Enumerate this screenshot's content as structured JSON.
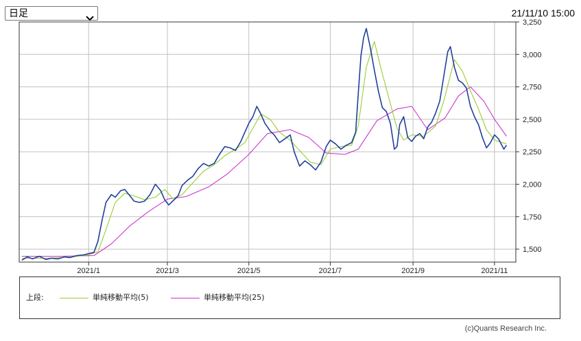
{
  "controls": {
    "period_selected": "日足",
    "timestamp": "21/11/10 15:00"
  },
  "legend": {
    "prefix": "上段:",
    "items": [
      {
        "label": "単純移動平均(5)",
        "color": "#99cc33"
      },
      {
        "label": "単純移動平均(25)",
        "color": "#cc33cc"
      }
    ]
  },
  "copyright": "(c)Quants Research Inc.",
  "colors": {
    "price": "#1f3f99",
    "sma5": "#99cc33",
    "sma25": "#cc33cc",
    "grid": "#c0c0c0",
    "frame": "#333333"
  },
  "chart_data": {
    "type": "line",
    "ylim": [
      1400,
      3250
    ],
    "grid": true,
    "y_ticks": [
      1500,
      1750,
      2000,
      2250,
      2500,
      2750,
      3000,
      3250
    ],
    "y_tick_labels": [
      "1,500",
      "1,750",
      "2,000",
      "2,250",
      "2,500",
      "2,750",
      "3,000",
      "3,250"
    ],
    "x_ticks": [
      {
        "x": "2021-01-01",
        "label": "2021/1"
      },
      {
        "x": "2021-03-01",
        "label": "2021/3"
      },
      {
        "x": "2021-05-01",
        "label": "2021/5"
      },
      {
        "x": "2021-07-01",
        "label": "2021/7"
      },
      {
        "x": "2021-09-01",
        "label": "2021/9"
      },
      {
        "x": "2021-11-01",
        "label": "2021/11"
      }
    ],
    "x_range": [
      "2020-11-10",
      "2021-11-17"
    ],
    "series": [
      {
        "name": "",
        "key": "price",
        "points": [
          [
            "2020-11-12",
            1415
          ],
          [
            "2020-11-16",
            1440
          ],
          [
            "2020-11-20",
            1425
          ],
          [
            "2020-11-25",
            1445
          ],
          [
            "2020-11-30",
            1420
          ],
          [
            "2020-12-04",
            1430
          ],
          [
            "2020-12-09",
            1425
          ],
          [
            "2020-12-14",
            1440
          ],
          [
            "2020-12-18",
            1435
          ],
          [
            "2020-12-23",
            1450
          ],
          [
            "2020-12-28",
            1455
          ],
          [
            "2021-01-01",
            1465
          ],
          [
            "2021-01-05",
            1475
          ],
          [
            "2021-01-08",
            1560
          ],
          [
            "2021-01-11",
            1720
          ],
          [
            "2021-01-14",
            1860
          ],
          [
            "2021-01-18",
            1920
          ],
          [
            "2021-01-21",
            1900
          ],
          [
            "2021-01-25",
            1950
          ],
          [
            "2021-01-28",
            1960
          ],
          [
            "2021-02-01",
            1910
          ],
          [
            "2021-02-04",
            1870
          ],
          [
            "2021-02-08",
            1860
          ],
          [
            "2021-02-12",
            1870
          ],
          [
            "2021-02-16",
            1920
          ],
          [
            "2021-02-20",
            2000
          ],
          [
            "2021-02-24",
            1950
          ],
          [
            "2021-02-27",
            1880
          ],
          [
            "2021-03-02",
            1840
          ],
          [
            "2021-03-05",
            1870
          ],
          [
            "2021-03-09",
            1910
          ],
          [
            "2021-03-12",
            1990
          ],
          [
            "2021-03-16",
            2030
          ],
          [
            "2021-03-20",
            2060
          ],
          [
            "2021-03-24",
            2120
          ],
          [
            "2021-03-28",
            2160
          ],
          [
            "2021-04-01",
            2140
          ],
          [
            "2021-04-05",
            2160
          ],
          [
            "2021-04-09",
            2230
          ],
          [
            "2021-04-13",
            2290
          ],
          [
            "2021-04-17",
            2280
          ],
          [
            "2021-04-21",
            2260
          ],
          [
            "2021-04-25",
            2330
          ],
          [
            "2021-04-28",
            2400
          ],
          [
            "2021-05-01",
            2470
          ],
          [
            "2021-05-04",
            2520
          ],
          [
            "2021-05-07",
            2600
          ],
          [
            "2021-05-10",
            2540
          ],
          [
            "2021-05-13",
            2470
          ],
          [
            "2021-05-17",
            2410
          ],
          [
            "2021-05-20",
            2380
          ],
          [
            "2021-05-24",
            2320
          ],
          [
            "2021-05-28",
            2350
          ],
          [
            "2021-06-01",
            2380
          ],
          [
            "2021-06-04",
            2250
          ],
          [
            "2021-06-08",
            2140
          ],
          [
            "2021-06-12",
            2180
          ],
          [
            "2021-06-16",
            2150
          ],
          [
            "2021-06-20",
            2110
          ],
          [
            "2021-06-24",
            2170
          ],
          [
            "2021-06-28",
            2290
          ],
          [
            "2021-07-01",
            2340
          ],
          [
            "2021-07-05",
            2310
          ],
          [
            "2021-07-09",
            2270
          ],
          [
            "2021-07-13",
            2300
          ],
          [
            "2021-07-17",
            2320
          ],
          [
            "2021-07-20",
            2400
          ],
          [
            "2021-07-22",
            2700
          ],
          [
            "2021-07-24",
            2990
          ],
          [
            "2021-07-26",
            3130
          ],
          [
            "2021-07-28",
            3200
          ],
          [
            "2021-07-31",
            3050
          ],
          [
            "2021-08-03",
            2880
          ],
          [
            "2021-08-06",
            2720
          ],
          [
            "2021-08-09",
            2590
          ],
          [
            "2021-08-12",
            2560
          ],
          [
            "2021-08-15",
            2470
          ],
          [
            "2021-08-18",
            2270
          ],
          [
            "2021-08-20",
            2290
          ],
          [
            "2021-08-22",
            2460
          ],
          [
            "2021-08-25",
            2520
          ],
          [
            "2021-08-28",
            2360
          ],
          [
            "2021-08-31",
            2330
          ],
          [
            "2021-09-03",
            2370
          ],
          [
            "2021-09-06",
            2390
          ],
          [
            "2021-09-09",
            2350
          ],
          [
            "2021-09-12",
            2440
          ],
          [
            "2021-09-15",
            2480
          ],
          [
            "2021-09-18",
            2550
          ],
          [
            "2021-09-21",
            2640
          ],
          [
            "2021-09-24",
            2830
          ],
          [
            "2021-09-27",
            3020
          ],
          [
            "2021-09-29",
            3060
          ],
          [
            "2021-10-02",
            2900
          ],
          [
            "2021-10-05",
            2800
          ],
          [
            "2021-10-08",
            2780
          ],
          [
            "2021-10-11",
            2740
          ],
          [
            "2021-10-14",
            2600
          ],
          [
            "2021-10-17",
            2520
          ],
          [
            "2021-10-20",
            2460
          ],
          [
            "2021-10-23",
            2360
          ],
          [
            "2021-10-26",
            2280
          ],
          [
            "2021-10-29",
            2320
          ],
          [
            "2021-11-01",
            2380
          ],
          [
            "2021-11-04",
            2350
          ],
          [
            "2021-11-08",
            2270
          ],
          [
            "2021-11-10",
            2300
          ]
        ]
      },
      {
        "name": "単純移動平均(5)",
        "key": "sma5",
        "points": [
          [
            "2020-11-12",
            1430
          ],
          [
            "2020-12-01",
            1430
          ],
          [
            "2020-12-20",
            1440
          ],
          [
            "2021-01-01",
            1455
          ],
          [
            "2021-01-08",
            1480
          ],
          [
            "2021-01-14",
            1650
          ],
          [
            "2021-01-21",
            1860
          ],
          [
            "2021-01-28",
            1930
          ],
          [
            "2021-02-04",
            1910
          ],
          [
            "2021-02-12",
            1880
          ],
          [
            "2021-02-20",
            1900
          ],
          [
            "2021-02-27",
            1960
          ],
          [
            "2021-03-05",
            1890
          ],
          [
            "2021-03-12",
            1920
          ],
          [
            "2021-03-20",
            2010
          ],
          [
            "2021-03-28",
            2100
          ],
          [
            "2021-04-05",
            2150
          ],
          [
            "2021-04-13",
            2220
          ],
          [
            "2021-04-21",
            2270
          ],
          [
            "2021-04-28",
            2320
          ],
          [
            "2021-05-04",
            2430
          ],
          [
            "2021-05-10",
            2540
          ],
          [
            "2021-05-17",
            2500
          ],
          [
            "2021-05-24",
            2400
          ],
          [
            "2021-06-01",
            2340
          ],
          [
            "2021-06-08",
            2260
          ],
          [
            "2021-06-16",
            2170
          ],
          [
            "2021-06-24",
            2150
          ],
          [
            "2021-07-01",
            2270
          ],
          [
            "2021-07-09",
            2290
          ],
          [
            "2021-07-17",
            2300
          ],
          [
            "2021-07-22",
            2450
          ],
          [
            "2021-07-28",
            2900
          ],
          [
            "2021-08-03",
            3100
          ],
          [
            "2021-08-09",
            2850
          ],
          [
            "2021-08-15",
            2620
          ],
          [
            "2021-08-20",
            2430
          ],
          [
            "2021-08-25",
            2340
          ],
          [
            "2021-08-31",
            2380
          ],
          [
            "2021-09-09",
            2370
          ],
          [
            "2021-09-18",
            2450
          ],
          [
            "2021-09-24",
            2640
          ],
          [
            "2021-10-02",
            2960
          ],
          [
            "2021-10-08",
            2870
          ],
          [
            "2021-10-14",
            2720
          ],
          [
            "2021-10-20",
            2580
          ],
          [
            "2021-10-26",
            2420
          ],
          [
            "2021-11-01",
            2340
          ],
          [
            "2021-11-10",
            2310
          ]
        ]
      },
      {
        "name": "単純移動平均(25)",
        "key": "sma25",
        "points": [
          [
            "2020-11-12",
            1445
          ],
          [
            "2020-12-10",
            1445
          ],
          [
            "2021-01-05",
            1450
          ],
          [
            "2021-01-18",
            1540
          ],
          [
            "2021-02-01",
            1680
          ],
          [
            "2021-02-15",
            1790
          ],
          [
            "2021-03-01",
            1885
          ],
          [
            "2021-03-15",
            1905
          ],
          [
            "2021-04-01",
            1980
          ],
          [
            "2021-04-15",
            2080
          ],
          [
            "2021-05-01",
            2230
          ],
          [
            "2021-05-15",
            2390
          ],
          [
            "2021-06-01",
            2420
          ],
          [
            "2021-06-15",
            2360
          ],
          [
            "2021-06-28",
            2240
          ],
          [
            "2021-07-12",
            2230
          ],
          [
            "2021-07-22",
            2270
          ],
          [
            "2021-08-05",
            2490
          ],
          [
            "2021-08-20",
            2580
          ],
          [
            "2021-08-31",
            2600
          ],
          [
            "2021-09-12",
            2420
          ],
          [
            "2021-09-25",
            2510
          ],
          [
            "2021-10-05",
            2680
          ],
          [
            "2021-10-14",
            2750
          ],
          [
            "2021-10-24",
            2640
          ],
          [
            "2021-11-01",
            2500
          ],
          [
            "2021-11-10",
            2370
          ]
        ]
      }
    ]
  }
}
